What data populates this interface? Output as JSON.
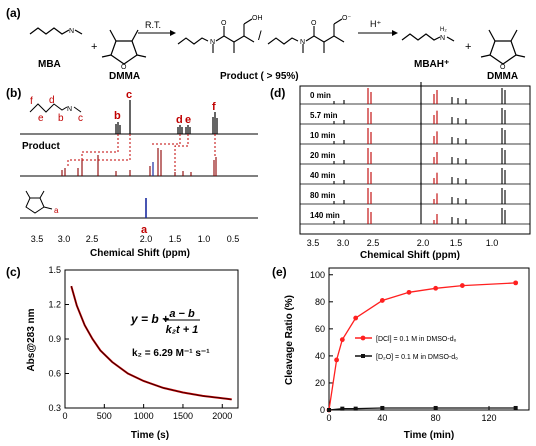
{
  "panels": {
    "a": {
      "label": "(a)",
      "mba_label": "MBA",
      "dmma_label": "DMMA",
      "plus": "+",
      "rt": "R.T.",
      "product_label": "Product ( > 95%)",
      "slash": "/",
      "hplus": "H⁺",
      "mbah_label": "MBAH⁺",
      "dmma_label2": "DMMA",
      "oh": "OH",
      "ominus": "O⁻",
      "n": "N",
      "o": "O",
      "nh2": "H₂"
    },
    "b": {
      "label": "(b)",
      "chain_letters": [
        "f",
        "e",
        "d",
        "b",
        "c"
      ],
      "n_letter": "N",
      "peak_letters": [
        "c",
        "b",
        "d",
        "e",
        "f"
      ],
      "product_label": "Product",
      "a_letter": "a",
      "a_letter_struct": "a",
      "xlabel": "Chemical Shift (ppm)",
      "xticks": [
        "3.5",
        "3.0",
        "2.5",
        "2.0",
        "1.5",
        "1.0",
        "0.5"
      ]
    },
    "c": {
      "label": "(c)",
      "equation_lhs": "y = b +",
      "equation_num": "a − b",
      "equation_den": "k₂t + 1",
      "k2_text": "k₂ = 6.29 M⁻¹ s⁻¹",
      "xlabel": "Time (s)",
      "ylabel": "Abs@283 nm",
      "xticks": [
        "0",
        "500",
        "1000",
        "1500",
        "2000"
      ],
      "yticks": [
        "0.3",
        "0.6",
        "0.9",
        "1.2",
        "1.5"
      ]
    },
    "d": {
      "label": "(d)",
      "times": [
        "0 min",
        "5.7 min",
        "10 min",
        "20 min",
        "40 min",
        "80 min",
        "140 min"
      ],
      "xlabel": "Chemical Shift (ppm)",
      "xticks": [
        "3.5",
        "3.0",
        "2.5",
        "2.0",
        "1.5",
        "1.0"
      ]
    },
    "e": {
      "label": "(e)",
      "xlabel": "Time (min)",
      "ylabel": "Cleavage Ratio (%)",
      "xticks": [
        "0",
        "40",
        "80",
        "120"
      ],
      "yticks": [
        "0",
        "20",
        "40",
        "60",
        "80",
        "100"
      ],
      "legend": [
        "[DCl] = 0.1 M in DMSO-d₆",
        "[D₂O] = 0.1 M in DMSO-d₆"
      ]
    }
  },
  "chart_data": [
    {
      "type": "line",
      "panel": "c",
      "xlabel": "Time (s)",
      "ylabel": "Abs@283 nm",
      "xlim": [
        0,
        2200
      ],
      "ylim": [
        0.3,
        1.5
      ],
      "model": "y = b + (a - b)/(k2 t + 1)",
      "k2": "6.29 M-1 s-1",
      "series": [
        {
          "x": [
            80,
            150,
            250,
            350,
            450,
            600,
            800,
            1000,
            1250,
            1500,
            1750,
            2000,
            2120
          ],
          "values": [
            1.36,
            1.19,
            1.02,
            0.9,
            0.8,
            0.7,
            0.6,
            0.535,
            0.475,
            0.435,
            0.405,
            0.385,
            0.375
          ],
          "color": "#c00000"
        }
      ]
    },
    {
      "type": "line",
      "panel": "e",
      "xlabel": "Time (min)",
      "ylabel": "Cleavage Ratio (%)",
      "xlim": [
        0,
        150
      ],
      "ylim": [
        0,
        105
      ],
      "series": [
        {
          "name": "[DCl] = 0.1 M in DMSO-d₆",
          "x": [
            0,
            5.7,
            10,
            20,
            40,
            60,
            80,
            100,
            140
          ],
          "values": [
            0,
            37,
            52,
            68,
            81,
            87,
            90,
            92,
            94
          ],
          "color": "#ff2020"
        },
        {
          "name": "[D₂O] = 0.1 M in DMSO-d₆",
          "x": [
            0,
            10,
            20,
            40,
            80,
            140
          ],
          "values": [
            0,
            1,
            1,
            1.5,
            1.5,
            1.5
          ],
          "color": "#111111"
        }
      ]
    }
  ]
}
